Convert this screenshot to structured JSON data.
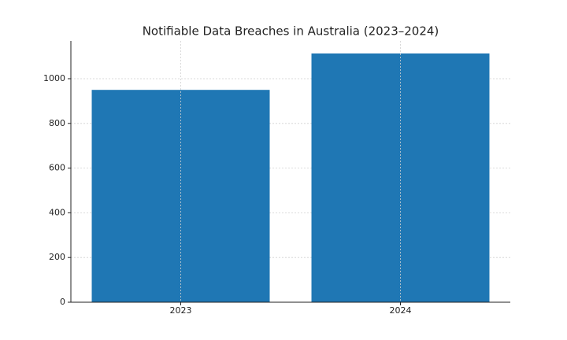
{
  "chart_data": {
    "type": "bar",
    "title": "Notifiable Data Breaches in Australia (2023–2024)",
    "categories": [
      "2023",
      "2024"
    ],
    "values": [
      950,
      1113
    ],
    "color": "#1f77b4",
    "ylim": [
      0,
      1169
    ],
    "yticks": [
      0,
      200,
      400,
      600,
      800,
      1000
    ],
    "grid": true
  }
}
